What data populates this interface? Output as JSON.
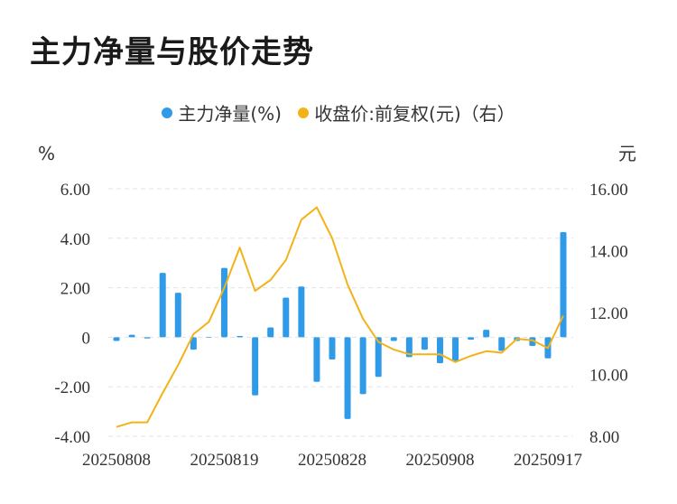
{
  "title": "主力净量与股价走势",
  "colors": {
    "bar": "#2f9be8",
    "line": "#f2b319",
    "grid": "#e3e3e3"
  },
  "chart_data": {
    "type": "bar+line",
    "title": "主力净量与股价走势",
    "legend": {
      "placement": "top-center",
      "items": [
        {
          "label": "主力净量(%)",
          "color": "#2f9be8"
        },
        {
          "label": "收盘价:前复权(元)（右）",
          "color": "#f2b319"
        }
      ]
    },
    "left_axis": {
      "unit": "%",
      "ylim": [
        -4,
        6
      ],
      "ticks": [
        "6.00",
        "4.00",
        "2.00",
        "0",
        "-2.00",
        "-4.00"
      ],
      "tick_values": [
        6,
        4,
        2,
        0,
        -2,
        -4
      ]
    },
    "right_axis": {
      "unit": "元",
      "ylim": [
        8,
        16
      ],
      "ticks": [
        "16.00",
        "14.00",
        "12.00",
        "10.00",
        "8.00"
      ],
      "tick_values": [
        16,
        14,
        12,
        10,
        8
      ]
    },
    "x_tick_labels": [
      "20250808",
      "20250819",
      "20250828",
      "20250908",
      "20250917"
    ],
    "x_tick_index": [
      0,
      7,
      14,
      21,
      28
    ],
    "grid": true,
    "series": [
      {
        "name": "主力净量(%)",
        "type": "bar",
        "values": [
          -0.15,
          0.1,
          -0.05,
          2.6,
          1.8,
          -0.5,
          0,
          2.8,
          0.05,
          -2.35,
          0.4,
          1.6,
          2.05,
          -1.8,
          -0.9,
          -3.3,
          -2.3,
          -1.6,
          -0.15,
          -0.8,
          -0.5,
          -1.05,
          -1.0,
          -0.1,
          0.3,
          -0.55,
          -0.15,
          -0.35,
          -0.85,
          4.25
        ]
      },
      {
        "name": "收盘价:前复权(元)（右）",
        "type": "line",
        "values": [
          8.3,
          8.45,
          8.45,
          9.4,
          10.3,
          11.3,
          11.7,
          12.8,
          14.1,
          12.7,
          13.05,
          13.7,
          15.0,
          15.4,
          14.4,
          12.9,
          11.8,
          11.05,
          10.8,
          10.65,
          10.65,
          10.65,
          10.4,
          10.6,
          10.75,
          10.7,
          11.15,
          11.1,
          10.85,
          11.9
        ]
      }
    ]
  }
}
